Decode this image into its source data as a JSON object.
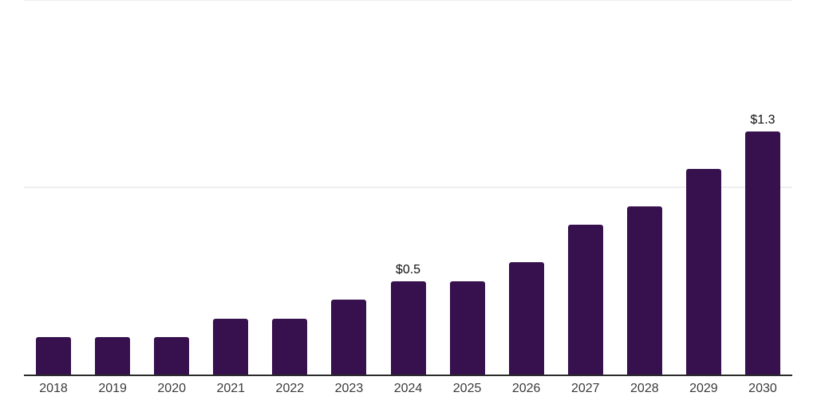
{
  "chart_data": {
    "type": "bar",
    "categories": [
      "2018",
      "2019",
      "2020",
      "2021",
      "2022",
      "2023",
      "2024",
      "2025",
      "2026",
      "2027",
      "2028",
      "2029",
      "2030"
    ],
    "values": [
      0.2,
      0.2,
      0.2,
      0.3,
      0.3,
      0.4,
      0.5,
      0.5,
      0.6,
      0.8,
      0.9,
      1.1,
      1.3
    ],
    "data_labels": {
      "2024": "$0.5",
      "2030": "$1.3"
    },
    "xlabel": "",
    "ylabel": "",
    "ylim": [
      0,
      2.0
    ],
    "gridline_values": [
      1.0,
      2.0
    ],
    "grid": "horizontal",
    "legend_position": "none",
    "colors": {
      "bar": "#36114e",
      "axis_line": "#2b2b2b",
      "gridline": "#efefef",
      "tick_label": "#3a3a3a",
      "data_label": "#111111",
      "background": "#ffffff"
    }
  }
}
